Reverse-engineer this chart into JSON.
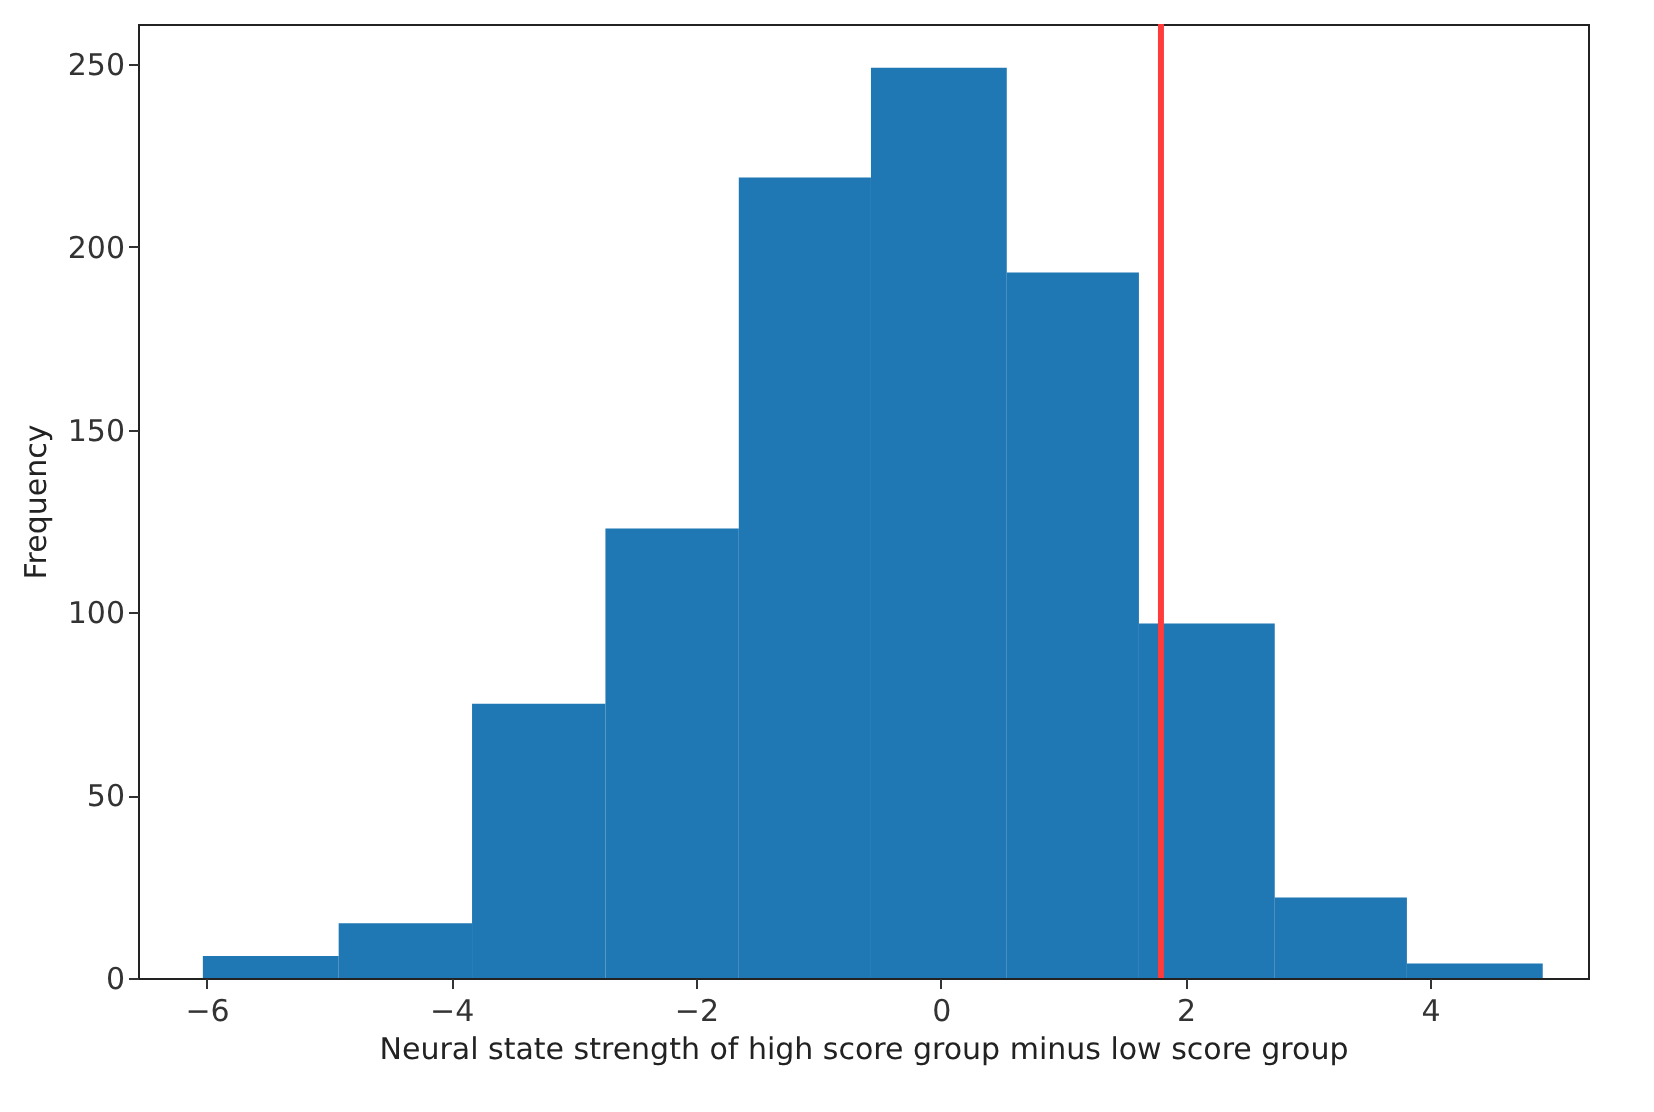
{
  "chart_data": {
    "type": "histogram",
    "xlabel": "Neural state strength of high score group minus low score group",
    "ylabel": "Frequency",
    "bins": [
      -6.03,
      -4.92,
      -3.83,
      -2.74,
      -1.65,
      -0.57,
      0.54,
      1.62,
      2.73,
      3.81,
      4.92
    ],
    "values": [
      6,
      15,
      75,
      123,
      219,
      249,
      193,
      97,
      22,
      4
    ],
    "color": "#1f77b4",
    "xlim": [
      -6.56,
      5.29
    ],
    "xticks": [
      {
        "value": -6,
        "label": "−6"
      },
      {
        "value": -4,
        "label": "−4"
      },
      {
        "value": -2,
        "label": "−2"
      },
      0,
      2,
      4
    ],
    "ylim": [
      0,
      261
    ],
    "yticks": [
      0,
      50,
      100,
      150,
      200,
      250
    ],
    "ref_lines": [
      {
        "axis": "x",
        "value": 1.8,
        "color": "#ff3b3b"
      }
    ],
    "grid": false
  }
}
